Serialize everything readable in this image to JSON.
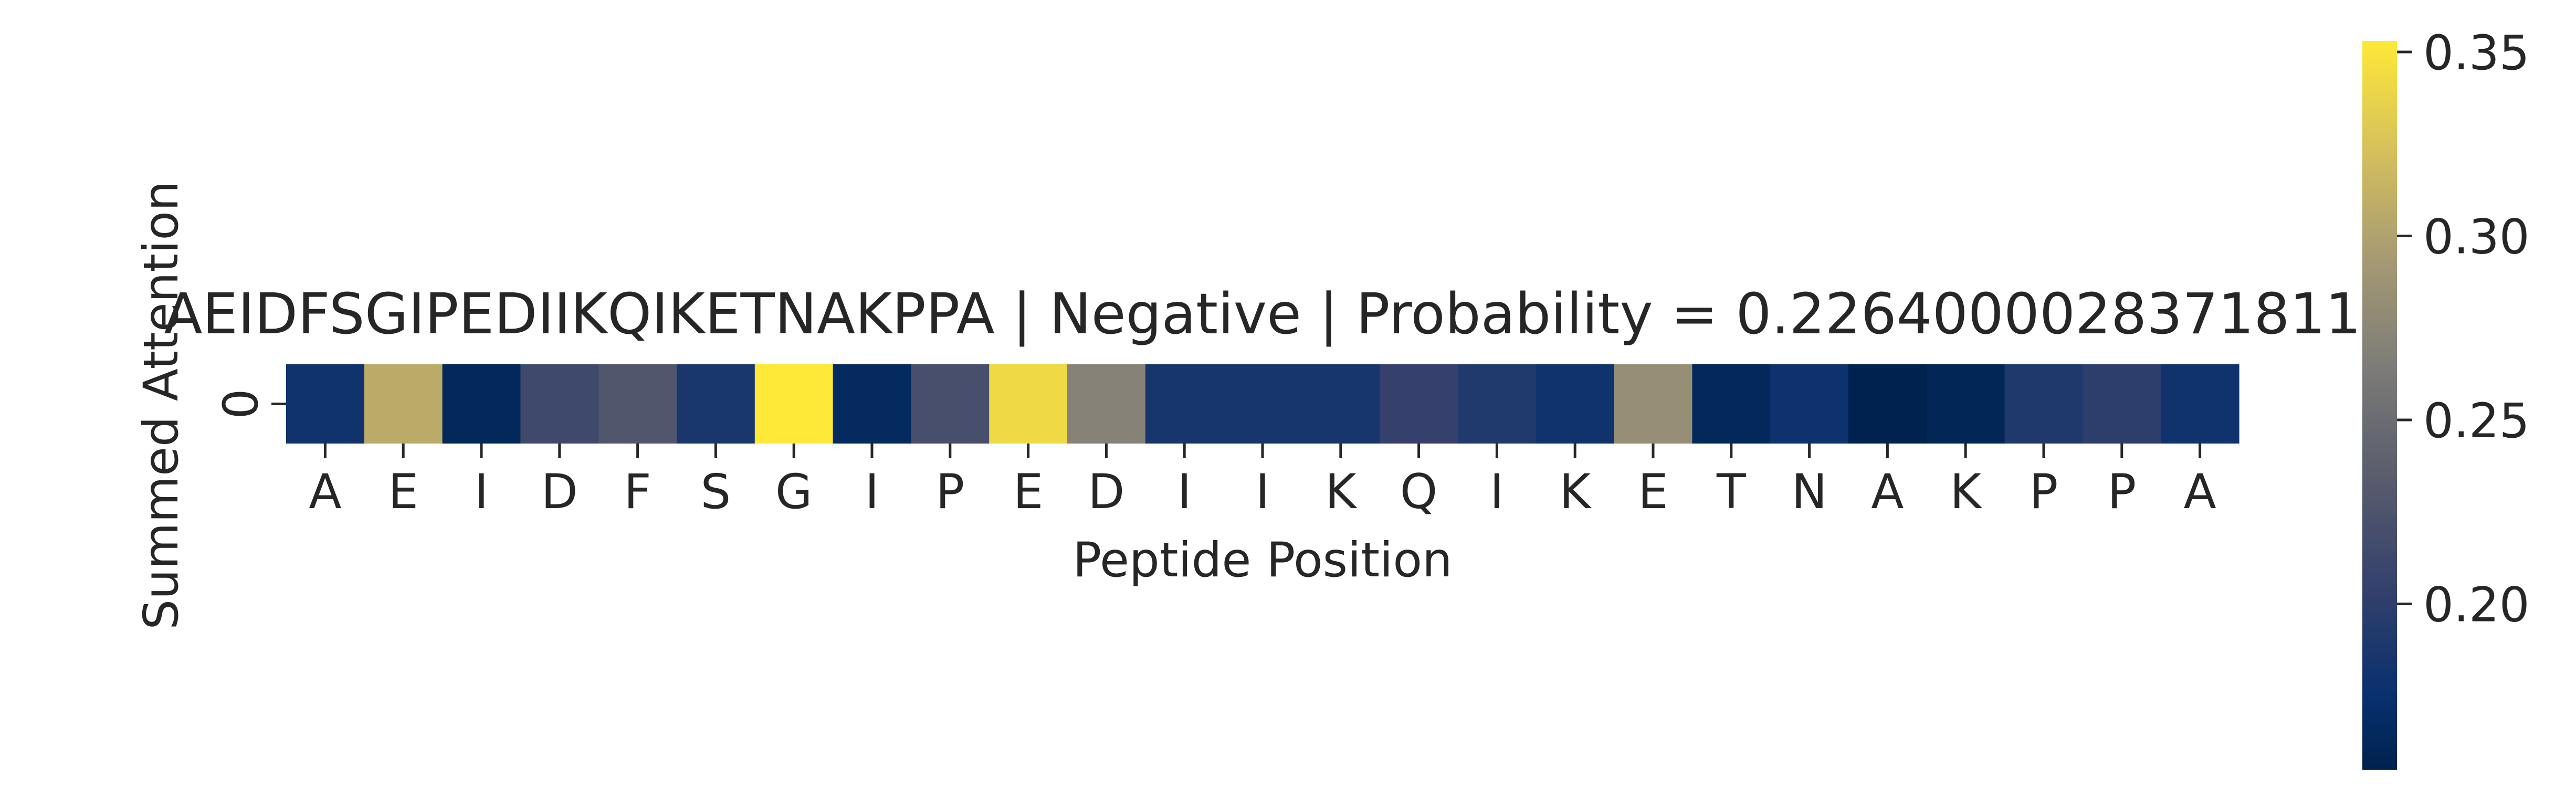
{
  "chart_data": {
    "type": "heatmap",
    "title": "AEIDFSGIPEDIIKQIKETNAKPPA | Negative | Probability = 0.2264000028371811",
    "xlabel": "Peptide Position",
    "ylabel": "Summed Attention",
    "row_labels": [
      "0"
    ],
    "categories": [
      "A",
      "E",
      "I",
      "D",
      "F",
      "S",
      "G",
      "I",
      "P",
      "E",
      "D",
      "I",
      "I",
      "K",
      "Q",
      "I",
      "K",
      "E",
      "T",
      "N",
      "A",
      "K",
      "P",
      "P",
      "A"
    ],
    "values": [
      0.18,
      0.307,
      0.163,
      0.213,
      0.228,
      0.187,
      0.353,
      0.166,
      0.22,
      0.342,
      0.271,
      0.185,
      0.185,
      0.185,
      0.205,
      0.192,
      0.18,
      0.283,
      0.163,
      0.178,
      0.155,
      0.16,
      0.19,
      0.2,
      0.18
    ],
    "colorbar": {
      "colormap": "cividis",
      "vmin": 0.155,
      "vmax": 0.353,
      "ticks": [
        0.2,
        0.25,
        0.3,
        0.35
      ],
      "tick_labels": [
        "0.20",
        "0.25",
        "0.30",
        "0.35"
      ]
    }
  }
}
